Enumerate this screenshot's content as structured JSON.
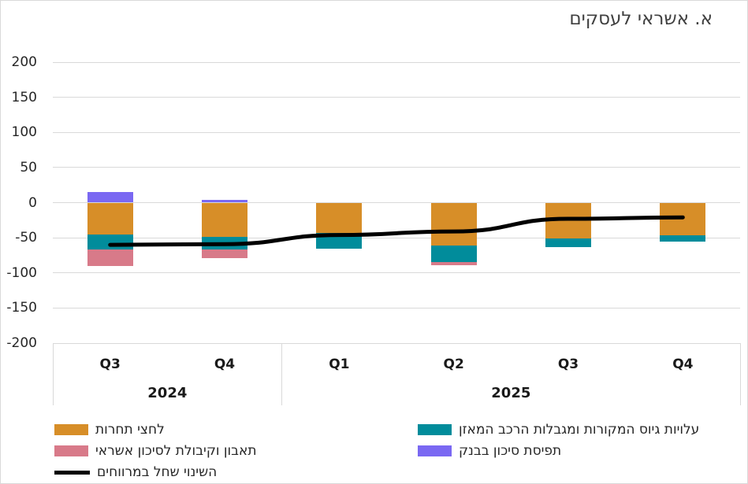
{
  "title": "א. אשראי לעסקים",
  "chart_data": {
    "type": "bar",
    "subtype": "stacked-bars-with-line",
    "title": "א. אשראי לעסקים",
    "categories": [
      "Q3 2024",
      "Q4 2024",
      "Q1 2025",
      "Q2 2025",
      "Q3 2025",
      "Q4 2025"
    ],
    "quarter_labels": [
      "Q3",
      "Q4",
      "Q1",
      "Q2",
      "Q3",
      "Q4"
    ],
    "year_groups": [
      {
        "label": "2024",
        "count": 2
      },
      {
        "label": "2025",
        "count": 4
      }
    ],
    "series": [
      {
        "name": "לחצי תחרות",
        "color": "#D78E28",
        "values": [
          -45,
          -49,
          -43,
          -61,
          -51,
          -46
        ]
      },
      {
        "name": "עלויות גיוס המקורות ומגבלות הרכב המאזן",
        "color": "#018C9B",
        "values": [
          -22,
          -18,
          -22,
          -24,
          -12,
          -9
        ]
      },
      {
        "name": "תאבון וקיבולת לסיכון אשראי",
        "color": "#D87A89",
        "values": [
          -23,
          -12,
          0,
          -4,
          0,
          0
        ]
      },
      {
        "name": "תפיסת סיכון בבנק",
        "color": "#7A68F2",
        "values": [
          15,
          4,
          0,
          0,
          0,
          0
        ]
      }
    ],
    "line_series": {
      "name": "השינוי שחל במרווחים",
      "color": "#000000",
      "values": [
        -60,
        -59,
        -46,
        -41,
        -23,
        -21
      ]
    },
    "ylim": [
      -200,
      200
    ],
    "y_ticks": [
      200,
      150,
      100,
      50,
      0,
      -50,
      -100,
      -150,
      -200
    ],
    "grid": true,
    "legend_position": "bottom"
  },
  "legend": {
    "columns": [
      {
        "items": [
          {
            "label": "לחצי תחרות",
            "color": "#D78E28",
            "swatch": "box"
          },
          {
            "label": "תאבון וקיבולת לסיכון אשראי",
            "color": "#D87A89",
            "swatch": "box"
          },
          {
            "label": "השינוי שחל במרווחים",
            "color": "#000000",
            "swatch": "line"
          }
        ]
      },
      {
        "items": [
          {
            "label": "עלויות גיוס המקורות ומגבלות הרכב המאזן",
            "color": "#018C9B",
            "swatch": "box"
          },
          {
            "label": "תפיסת סיכון בבנק",
            "color": "#7A68F2",
            "swatch": "box"
          }
        ]
      }
    ]
  },
  "colors": {
    "grid": "#D9D9D9",
    "axis_text": "#262626",
    "title_text": "#404040",
    "frame_border": "#D9D9D9",
    "line": "#000000"
  }
}
